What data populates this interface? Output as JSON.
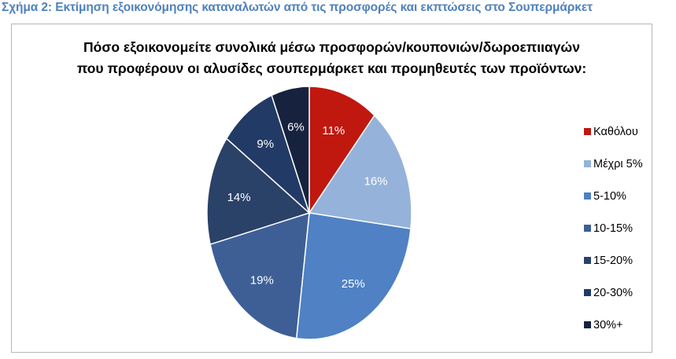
{
  "caption": "Σχήμα 2: Εκτίμηση εξοικονόμησης καταναλωτών από τις προσφορές και εκπτώσεις στο Σουπερμάρκετ",
  "chart_data": {
    "type": "pie",
    "title": [
      "Πόσο εξοικονομείτε συνολικά μέσω προσφορών/κουπονιών/δωροεπιιαγών",
      "που προφέρουν οι αλυσίδες σουπερμάρκετ και προμηθευτές των προϊόντων:"
    ],
    "categories": [
      "Καθόλου",
      "Μέχρι 5%",
      "5-10%",
      "10-15%",
      "15-20%",
      "20-30%",
      "30%+"
    ],
    "values": [
      11,
      16,
      25,
      19,
      14,
      9,
      6
    ],
    "data_labels": [
      "11%",
      "16%",
      "25%",
      "19%",
      "14%",
      "9%",
      "6%"
    ],
    "colors": [
      "#c0180f",
      "#95b2da",
      "#4f81c4",
      "#3e5f96",
      "#2a4168",
      "#223a66",
      "#17233e"
    ],
    "label_colors": [
      "#ffffff",
      "#ffffff",
      "#ffffff",
      "#ffffff",
      "#ffffff",
      "#ffffff",
      "#ffffff"
    ],
    "start_angle_deg": 0,
    "direction": "clockwise",
    "legend_position": "right"
  }
}
